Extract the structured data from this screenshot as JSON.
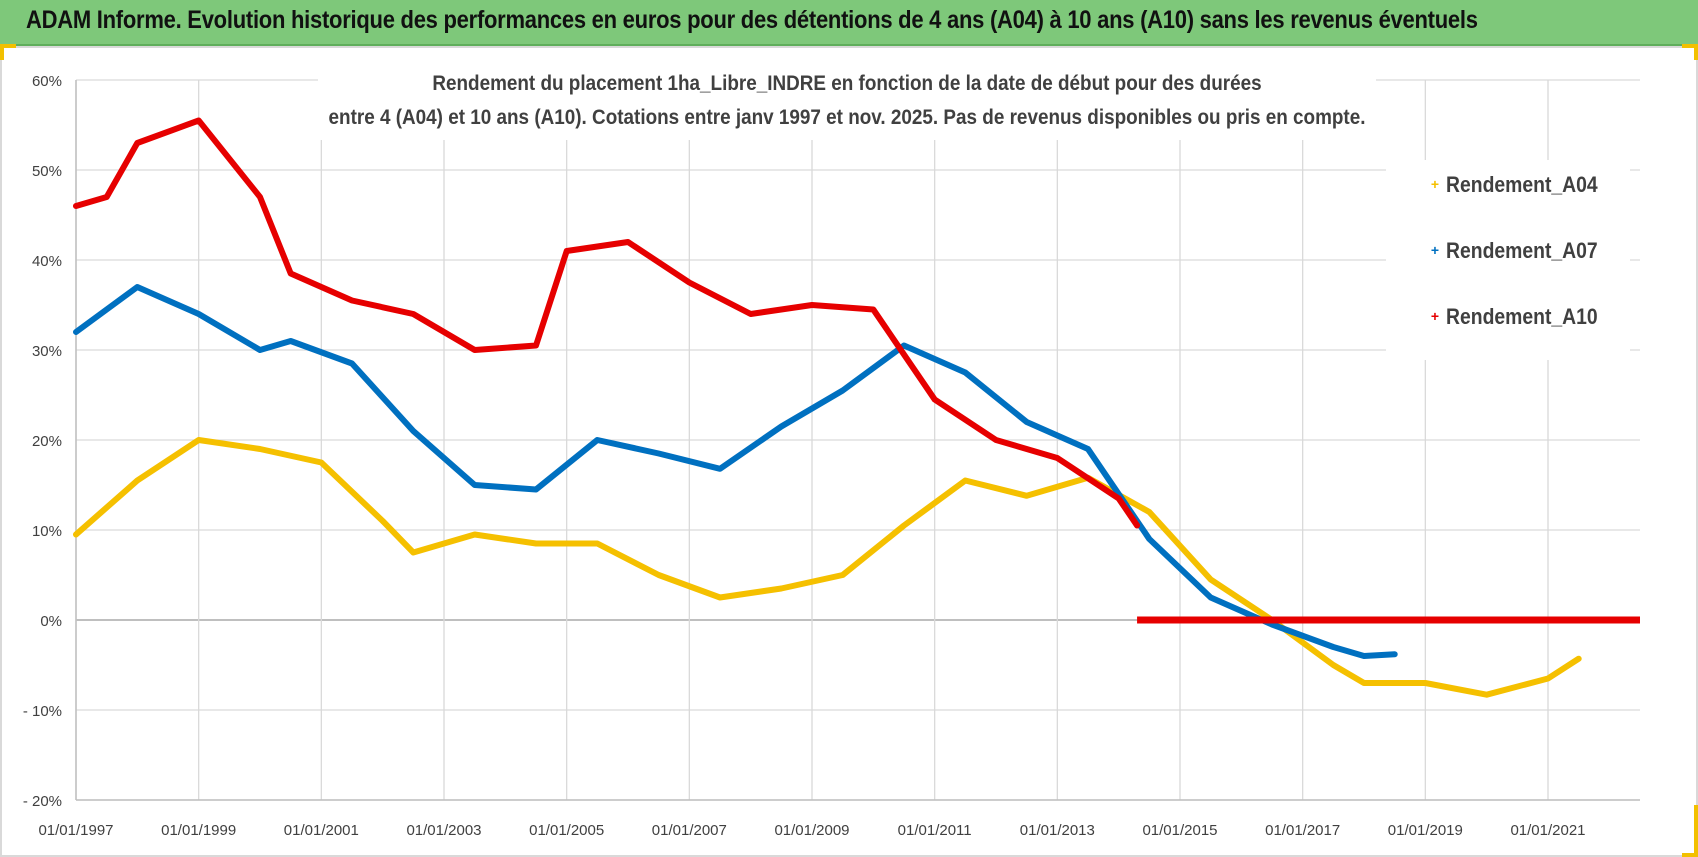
{
  "banner": {
    "title": "ADAM Informe. Evolution historique des performances en euros pour des détentions de 4 ans (A04) à 10 ans (A10) sans les revenus éventuels"
  },
  "colors": {
    "banner_bg": "#7ec87a",
    "corner_accent": "#f2c000",
    "grid": "#d9d9d9",
    "zero_line": "#bfbfbf"
  },
  "chart_data": {
    "type": "line",
    "title_lines": [
      "Rendement du placement 1ha_Libre_INDRE en fonction de la date de début pour des durées",
      "entre 4 (A04) et 10 ans (A10). Cotations entre janv 1997 et nov. 2025. Pas de revenus disponibles ou pris en compte."
    ],
    "xlabel": "",
    "ylabel": "",
    "x_range": [
      1997.0,
      2022.5
    ],
    "ylim": [
      -20,
      60
    ],
    "y_ticks": [
      {
        "value": 60,
        "label": "60%"
      },
      {
        "value": 50,
        "label": "50%"
      },
      {
        "value": 40,
        "label": "40%"
      },
      {
        "value": 30,
        "label": "30%"
      },
      {
        "value": 20,
        "label": "20%"
      },
      {
        "value": 10,
        "label": "10%"
      },
      {
        "value": 0,
        "label": "0%"
      },
      {
        "value": -10,
        "label": "- 10%"
      },
      {
        "value": -20,
        "label": "- 20%"
      }
    ],
    "x_ticks": [
      {
        "value": 1997,
        "label": "01/01/1997"
      },
      {
        "value": 1999,
        "label": "01/01/1999"
      },
      {
        "value": 2001,
        "label": "01/01/2001"
      },
      {
        "value": 2003,
        "label": "01/01/2003"
      },
      {
        "value": 2005,
        "label": "01/01/2005"
      },
      {
        "value": 2007,
        "label": "01/01/2007"
      },
      {
        "value": 2009,
        "label": "01/01/2009"
      },
      {
        "value": 2011,
        "label": "01/01/2011"
      },
      {
        "value": 2013,
        "label": "01/01/2013"
      },
      {
        "value": 2015,
        "label": "01/01/2015"
      },
      {
        "value": 2017,
        "label": "01/01/2017"
      },
      {
        "value": 2019,
        "label": "01/01/2019"
      },
      {
        "value": 2021,
        "label": "01/01/2021"
      }
    ],
    "grid": true,
    "legend_position": "top-right",
    "series": [
      {
        "name": "Rendement_A04",
        "color": "#f5c000",
        "points": [
          [
            1997.0,
            9.5
          ],
          [
            1998.0,
            15.5
          ],
          [
            1999.0,
            20.0
          ],
          [
            2000.0,
            19.0
          ],
          [
            2001.0,
            17.5
          ],
          [
            2002.0,
            11.0
          ],
          [
            2002.5,
            7.5
          ],
          [
            2003.5,
            9.5
          ],
          [
            2004.5,
            8.5
          ],
          [
            2005.5,
            8.5
          ],
          [
            2006.5,
            5.0
          ],
          [
            2007.5,
            2.5
          ],
          [
            2008.5,
            3.5
          ],
          [
            2009.5,
            5.0
          ],
          [
            2010.5,
            10.5
          ],
          [
            2011.5,
            15.5
          ],
          [
            2012.5,
            13.8
          ],
          [
            2013.5,
            15.8
          ],
          [
            2014.5,
            12.0
          ],
          [
            2015.5,
            4.5
          ],
          [
            2016.5,
            0.0
          ],
          [
            2017.5,
            -5.0
          ],
          [
            2018.0,
            -7.0
          ],
          [
            2019.0,
            -7.0
          ],
          [
            2020.0,
            -8.3
          ],
          [
            2021.0,
            -6.5
          ],
          [
            2021.5,
            -4.3
          ]
        ]
      },
      {
        "name": "Rendement_A07",
        "color": "#0070c0",
        "points": [
          [
            1997.0,
            32.0
          ],
          [
            1998.0,
            37.0
          ],
          [
            1999.0,
            34.0
          ],
          [
            2000.0,
            30.0
          ],
          [
            2000.5,
            31.0
          ],
          [
            2001.5,
            28.5
          ],
          [
            2002.5,
            21.0
          ],
          [
            2003.5,
            15.0
          ],
          [
            2004.5,
            14.5
          ],
          [
            2005.5,
            20.0
          ],
          [
            2006.5,
            18.5
          ],
          [
            2007.5,
            16.8
          ],
          [
            2008.5,
            21.5
          ],
          [
            2009.5,
            25.5
          ],
          [
            2010.5,
            30.5
          ],
          [
            2011.5,
            27.5
          ],
          [
            2012.5,
            22.0
          ],
          [
            2013.5,
            19.0
          ],
          [
            2014.5,
            9.0
          ],
          [
            2015.5,
            2.5
          ],
          [
            2016.5,
            -0.5
          ],
          [
            2017.5,
            -3.0
          ],
          [
            2018.0,
            -4.0
          ],
          [
            2018.5,
            -3.8
          ]
        ]
      },
      {
        "name": "Rendement_A10",
        "color": "#e60000",
        "points": [
          [
            1997.0,
            46.0
          ],
          [
            1997.5,
            47.0
          ],
          [
            1998.0,
            53.0
          ],
          [
            1999.0,
            55.5
          ],
          [
            2000.0,
            47.0
          ],
          [
            2000.5,
            38.5
          ],
          [
            2001.5,
            35.5
          ],
          [
            2002.5,
            34.0
          ],
          [
            2003.5,
            30.0
          ],
          [
            2004.5,
            30.5
          ],
          [
            2005.0,
            41.0
          ],
          [
            2006.0,
            42.0
          ],
          [
            2007.0,
            37.5
          ],
          [
            2008.0,
            34.0
          ],
          [
            2009.0,
            35.0
          ],
          [
            2010.0,
            34.5
          ],
          [
            2011.0,
            24.5
          ],
          [
            2012.0,
            20.0
          ],
          [
            2013.0,
            18.0
          ],
          [
            2014.0,
            13.5
          ],
          [
            2014.3,
            10.5
          ]
        ],
        "zero_segment": [
          [
            2014.3,
            0.0
          ],
          [
            2022.5,
            0.0
          ]
        ]
      }
    ]
  }
}
